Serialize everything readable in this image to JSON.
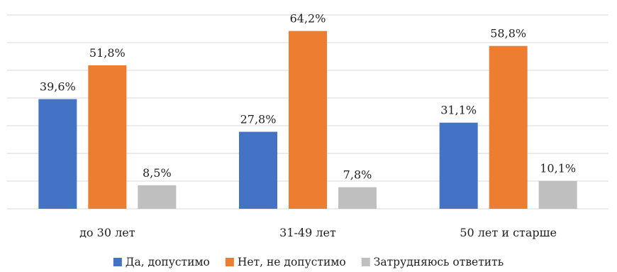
{
  "chart_data": {
    "type": "bar",
    "categories": [
      "до 30 лет",
      "31-49 лет",
      "50 лет и старше"
    ],
    "series": [
      {
        "name": "Да, допустимо",
        "color": "#4472c4",
        "values": [
          39.6,
          27.8,
          31.1
        ],
        "labels": [
          "39,6%",
          "27,8%",
          "31,1%"
        ]
      },
      {
        "name": "Нет, не допустимо",
        "color": "#ed7d31",
        "values": [
          51.8,
          64.2,
          58.8
        ],
        "labels": [
          "51,8%",
          "64,2%",
          "58,8%"
        ]
      },
      {
        "name": "Затрудняюсь ответить",
        "color": "#bfbfbf",
        "values": [
          8.5,
          7.8,
          10.1
        ],
        "labels": [
          "8,5%",
          "7,8%",
          "10,1%"
        ]
      }
    ],
    "ylim": [
      0,
      70
    ],
    "grid": true,
    "legend": "bottom",
    "gridColor": "#d9d9d9"
  }
}
